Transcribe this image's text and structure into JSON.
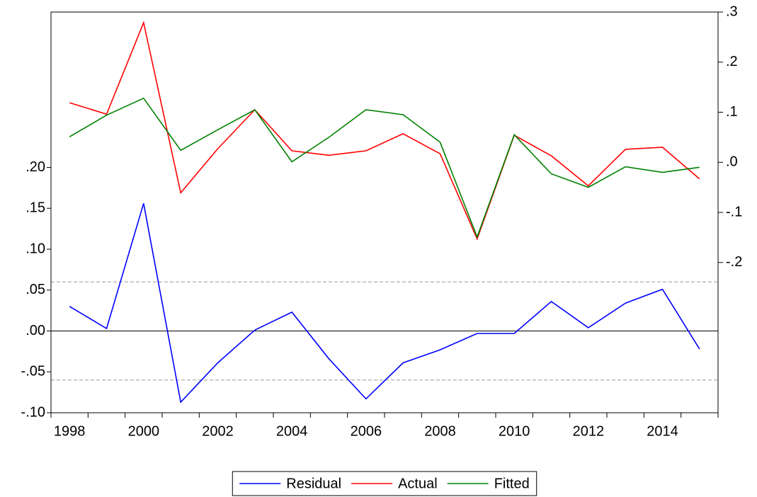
{
  "chart_data": {
    "type": "line",
    "categories": [
      "1998",
      null,
      "2000",
      null,
      "2002",
      null,
      "2004",
      null,
      "2006",
      null,
      "2008",
      null,
      "2010",
      null,
      "2012",
      null,
      "2014",
      null
    ],
    "series": [
      {
        "name": "Residual",
        "color": "#0000ff",
        "axis": "y",
        "values": [
          0.03,
          0.003,
          0.156,
          -0.087,
          -0.039,
          0.001,
          0.023,
          -0.034,
          -0.083,
          -0.039,
          -0.023,
          -0.003,
          -0.003,
          0.036,
          0.004,
          0.034,
          0.051,
          -0.022
        ]
      },
      {
        "name": "Actual",
        "color": "#ff0000",
        "axis": "y2",
        "values": [
          0.119,
          0.096,
          0.279,
          -0.061,
          0.027,
          0.105,
          0.023,
          0.014,
          0.023,
          0.057,
          0.017,
          -0.153,
          0.054,
          0.013,
          -0.047,
          0.026,
          0.03,
          -0.033
        ]
      },
      {
        "name": "Fitted",
        "color": "#008000",
        "axis": "y2",
        "values": [
          0.051,
          0.094,
          0.128,
          0.024,
          0.065,
          0.105,
          0.001,
          0.05,
          0.105,
          0.095,
          0.04,
          -0.149,
          0.055,
          -0.023,
          -0.05,
          -0.009,
          -0.02,
          -0.01
        ]
      }
    ],
    "ylim": [
      -0.1,
      0.39
    ],
    "yticks": [
      {
        "value": -0.1,
        "label": "-.10"
      },
      {
        "value": -0.05,
        "label": "-.05"
      },
      {
        "value": 0,
        "label": ".00"
      },
      {
        "value": 0.05,
        "label": ".05"
      },
      {
        "value": 0.1,
        "label": ".10"
      },
      {
        "value": 0.15,
        "label": ".15"
      },
      {
        "value": 0.2,
        "label": ".20"
      }
    ],
    "y2lim": [
      -0.5,
      0.3
    ],
    "y2ticks": [
      {
        "value": -0.2,
        "label": "-.2"
      },
      {
        "value": -0.1,
        "label": "-.1"
      },
      {
        "value": 0,
        "label": ".0"
      },
      {
        "value": 0.1,
        "label": ".1"
      },
      {
        "value": 0.2,
        "label": ".2"
      },
      {
        "value": 0.3,
        "label": ".3"
      }
    ],
    "reference_lines": [
      {
        "value": 0,
        "dashed": false
      },
      {
        "value": 0.06,
        "dashed": true
      },
      {
        "value": -0.06,
        "dashed": true
      }
    ],
    "legend": "bottom"
  }
}
